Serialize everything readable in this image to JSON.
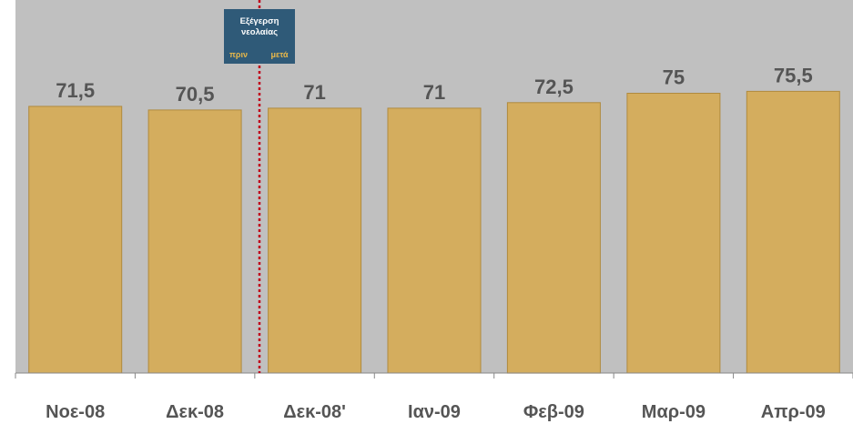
{
  "chart_data": {
    "type": "bar",
    "categories": [
      "Νοε-08",
      "Δεκ-08",
      "Δεκ-08'",
      "Ιαν-09",
      "Φεβ-09",
      "Μαρ-09",
      "Απρ-09"
    ],
    "values": [
      71.5,
      70.5,
      71,
      71,
      72.5,
      75,
      75.5
    ],
    "value_labels": [
      "71,5",
      "70,5",
      "71",
      "71",
      "72,5",
      "75",
      "75,5"
    ],
    "ylim": [
      0,
      100
    ],
    "grid": false,
    "legend": "none",
    "annotation": {
      "after_category_index": 1,
      "title_line1": "Εξέγερση",
      "title_line2": "νεολαίας",
      "before_label": "πριν",
      "after_label": "μετά"
    },
    "colors": {
      "plot_background": "#c0c0c0",
      "bar_fill": "#d4ad5e",
      "bar_edge": "#b08a3e",
      "annotation_box": "#2f5a78",
      "annotation_text": "#ffffff",
      "annotation_sub_text": "#e8b84a",
      "divider_line": "#c0001a",
      "label_text": "#555555"
    }
  }
}
